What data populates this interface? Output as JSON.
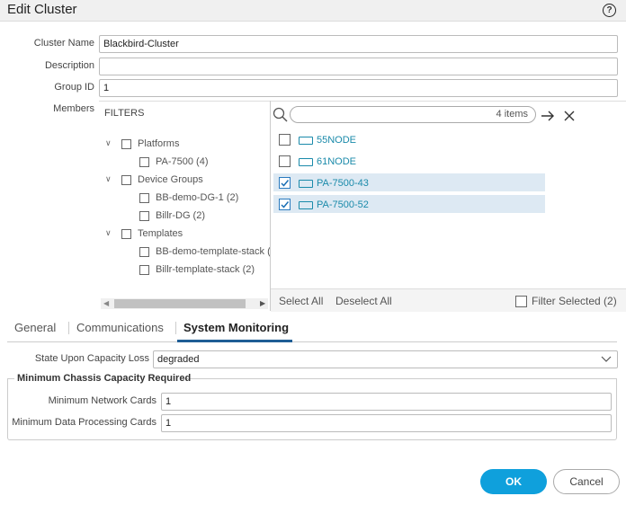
{
  "header": {
    "title": "Edit Cluster",
    "help": "?"
  },
  "form": {
    "cluster_name": {
      "label": "Cluster Name",
      "value": "Blackbird-Cluster"
    },
    "description": {
      "label": "Description"
    },
    "group_id": {
      "label": "Group ID",
      "value": "1"
    },
    "members_label": "Members"
  },
  "filters": {
    "title": "FILTERS",
    "groups": [
      {
        "label": "Platforms",
        "items": [
          "PA-7500 (4)"
        ]
      },
      {
        "label": "Device Groups",
        "items": [
          "BB-demo-DG-1 (2)",
          "Billr-DG (2)"
        ]
      },
      {
        "label": "Templates",
        "items": [
          "BB-demo-template-stack (",
          "Billr-template-stack (2)"
        ]
      }
    ]
  },
  "members": {
    "count": "4 items",
    "items": [
      {
        "name": "55NODE",
        "checked": false
      },
      {
        "name": "61NODE",
        "checked": false
      },
      {
        "name": "PA-7500-43",
        "checked": true
      },
      {
        "name": "PA-7500-52",
        "checked": true
      }
    ],
    "select_all": "Select All",
    "deselect_all": "Deselect All",
    "filter_selected": "Filter Selected (2)"
  },
  "tabs": {
    "items": [
      "General",
      "Communications",
      "System Monitoring"
    ],
    "active": 2
  },
  "monitoring": {
    "state": {
      "label": "State Upon Capacity Loss",
      "value": "degraded"
    },
    "fieldset": {
      "legend": "Minimum Chassis Capacity Required",
      "rows": [
        {
          "label": "Minimum Network Cards",
          "value": "1"
        },
        {
          "label": "Minimum Data Processing Cards",
          "value": "1"
        }
      ]
    }
  },
  "buttons": {
    "ok": "OK",
    "cancel": "Cancel"
  }
}
